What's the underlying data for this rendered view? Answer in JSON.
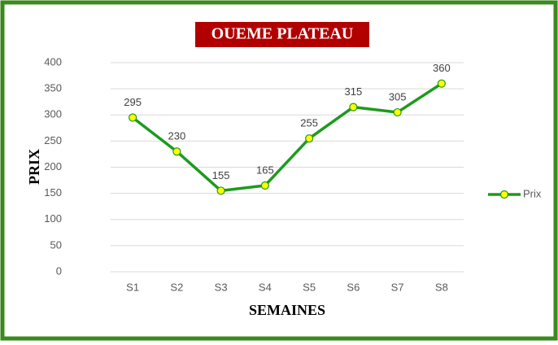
{
  "chart_data": {
    "type": "line",
    "title": "OUEME PLATEAU",
    "x_label": "SEMAINES",
    "y_label": "PRIX",
    "categories": [
      "S1",
      "S2",
      "S3",
      "S4",
      "S5",
      "S6",
      "S7",
      "S8"
    ],
    "series": [
      {
        "name": "Prix",
        "color": "#1e9a1e",
        "values": [
          295,
          230,
          155,
          165,
          255,
          315,
          305,
          360
        ]
      }
    ],
    "ylim": [
      0,
      400
    ],
    "yticks": [
      0,
      50,
      100,
      150,
      200,
      250,
      300,
      350,
      400
    ],
    "grid": true,
    "legend": "right"
  }
}
